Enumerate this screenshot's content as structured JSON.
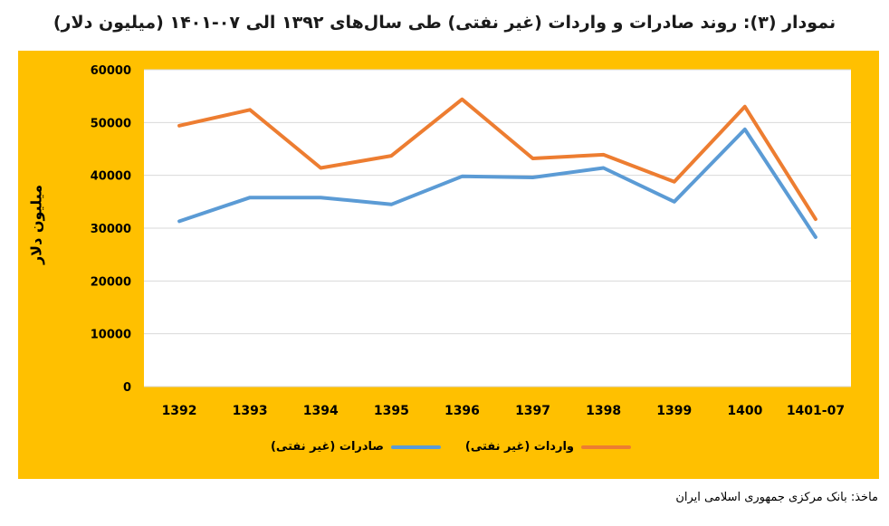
{
  "title": "نمودار (۳): روند صادرات و واردات (غیر نفتی) طی سال‌های ۱۳۹۲ الی ۰۷-۱۴۰۱ (میلیون دلار)",
  "source": "ماخذ: بانک مرکزی جمهوری اسلامی ایران",
  "chart_data": {
    "type": "line",
    "categories": [
      "1392",
      "1393",
      "1394",
      "1395",
      "1396",
      "1397",
      "1398",
      "1399",
      "1400",
      "1401-07"
    ],
    "series": [
      {
        "name": "صادرات (غیر نفتی)",
        "color": "#5B9BD5",
        "values": [
          31300,
          35800,
          35800,
          34500,
          39800,
          39600,
          41400,
          35000,
          48700,
          28300
        ]
      },
      {
        "name": "واردات (غیر نفتی)",
        "color": "#ED7D31",
        "values": [
          49400,
          52400,
          41400,
          43700,
          54400,
          43200,
          43900,
          38800,
          53000,
          31700
        ]
      }
    ],
    "ylabel": "میلیون دلار",
    "xlabel": "",
    "ylim": [
      0,
      60000
    ],
    "yticks": [
      0,
      10000,
      20000,
      30000,
      40000,
      50000,
      60000
    ],
    "grid": true,
    "legend_position": "bottom",
    "background_color": "#FFC000"
  }
}
